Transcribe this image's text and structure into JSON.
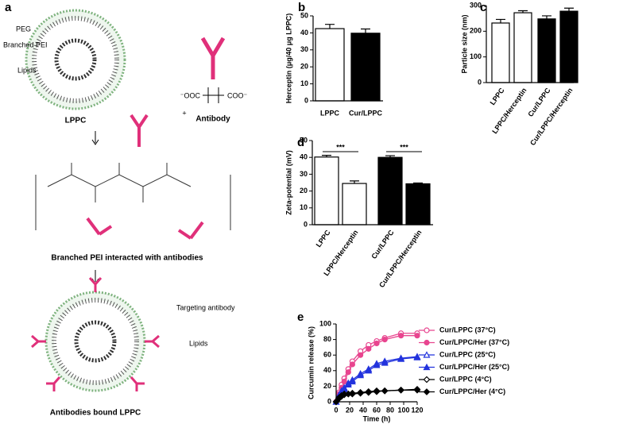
{
  "diagram": {
    "panel_label": "a",
    "peg": "PEG",
    "pei": "Branched PEI",
    "lipids": "Lipids",
    "plus": "+",
    "antibody": "Antibody",
    "charge_left": "⁻OOC",
    "charge_right": "COO⁻",
    "lppc": "LPPC",
    "middle_caption": "Branched PEI interacted with antibodies",
    "targeting": "Targeting antibody",
    "lipids_bottom": "Lipids",
    "bottom_caption": "Antibodies bound LPPC"
  },
  "chart_data": [
    {
      "type": "bar",
      "panel": "b",
      "ylabel": "Herceptin (μg/40 μg LPPC)",
      "categories": [
        "LPPC",
        "Cur/LPPC"
      ],
      "values": [
        42.5,
        39.8
      ],
      "errors": [
        2.5,
        2.5
      ],
      "colors": [
        "#ffffff",
        "#000000"
      ],
      "ylim": [
        0,
        50
      ],
      "yticks": [
        0,
        10,
        20,
        30,
        40,
        50
      ],
      "rotate_labels": false
    },
    {
      "type": "bar",
      "panel": "c",
      "ylabel": "Particle size (nm)",
      "categories": [
        "LPPC",
        "LPPC/Herceptin",
        "Cur/LPPC",
        "Cur/LPPC/Herceptin"
      ],
      "values": [
        232,
        272,
        248,
        278
      ],
      "errors": [
        14,
        8,
        12,
        12
      ],
      "colors": [
        "#ffffff",
        "#ffffff",
        "#000000",
        "#000000"
      ],
      "ylim": [
        0,
        300
      ],
      "yticks": [
        0,
        100,
        200,
        300
      ],
      "rotate_labels": true
    },
    {
      "type": "bar",
      "panel": "d",
      "ylabel": "Zeta-potential (mV)",
      "categories": [
        "LPPC",
        "LPPC/Herceptin",
        "Cur/LPPC",
        "Cur/LPPC/Herceptin"
      ],
      "values": [
        40.2,
        24.5,
        40.0,
        24.3
      ],
      "errors": [
        1,
        1.5,
        1,
        0.5
      ],
      "colors": [
        "#ffffff",
        "#ffffff",
        "#000000",
        "#000000"
      ],
      "ylim": [
        0,
        50
      ],
      "yticks": [
        0,
        10,
        20,
        30,
        40,
        50
      ],
      "rotate_labels": true,
      "annotations": [
        "***",
        "***"
      ]
    },
    {
      "type": "line",
      "panel": "e",
      "xlabel": "Time (h)",
      "ylabel": "Curcumin release (%)",
      "x": [
        0,
        4,
        8,
        12,
        18,
        24,
        36,
        48,
        60,
        72,
        96,
        120
      ],
      "xlim": [
        0,
        120
      ],
      "xticks": [
        0,
        20,
        40,
        60,
        80,
        100,
        120
      ],
      "ylim": [
        0,
        100
      ],
      "yticks": [
        0,
        20,
        40,
        60,
        80,
        100
      ],
      "legend": "right",
      "series": [
        {
          "name": "Cur/LPPC (37°C)",
          "color": "#e8458f",
          "marker": "circle",
          "filled": false,
          "values": [
            0,
            12,
            22,
            30,
            42,
            52,
            65,
            73,
            78,
            82,
            88,
            88
          ]
        },
        {
          "name": "Cur/LPPC/Her (37°C)",
          "color": "#e8458f",
          "marker": "circle",
          "filled": true,
          "values": [
            0,
            10,
            18,
            26,
            38,
            48,
            60,
            68,
            75,
            80,
            85,
            85
          ]
        },
        {
          "name": "Cur/LPPC (25°C)",
          "color": "#2233dd",
          "marker": "triangle",
          "filled": false,
          "values": [
            0,
            8,
            14,
            18,
            24,
            28,
            36,
            42,
            49,
            52,
            56,
            58
          ]
        },
        {
          "name": "Cur/LPPC/Her (25°C)",
          "color": "#2233dd",
          "marker": "triangle",
          "filled": true,
          "values": [
            0,
            7,
            12,
            16,
            22,
            26,
            34,
            40,
            47,
            50,
            55,
            57
          ]
        },
        {
          "name": "Cur/LPPC (4°C)",
          "color": "#000000",
          "marker": "diamond",
          "filled": false,
          "values": [
            0,
            5,
            8,
            10,
            10,
            11,
            12,
            13,
            14,
            14,
            15,
            16
          ]
        },
        {
          "name": "Cur/LPPC/Her (4°C)",
          "color": "#000000",
          "marker": "diamond",
          "filled": true,
          "values": [
            0,
            4,
            7,
            9,
            10,
            10,
            11,
            12,
            13,
            14,
            15,
            15
          ]
        }
      ]
    }
  ]
}
